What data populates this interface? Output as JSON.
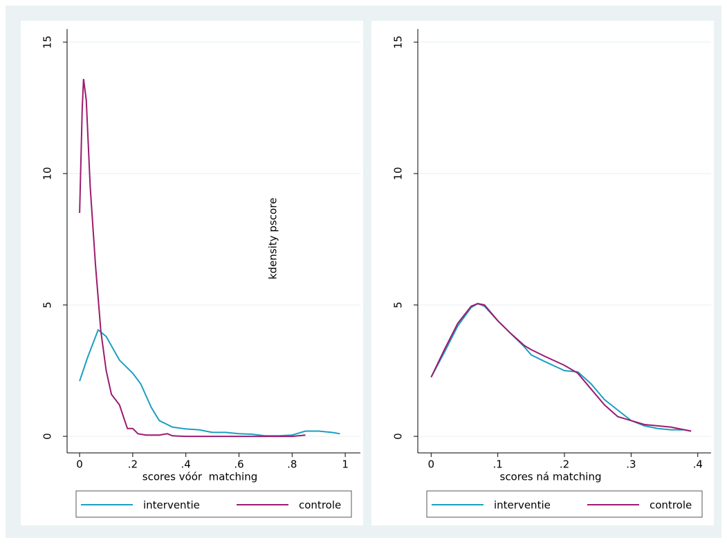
{
  "chart_data": [
    {
      "type": "line",
      "xlabel": "scores vóór  matching",
      "ylabel": "kdensity pscore",
      "xlim": [
        -0.047,
        1.057
      ],
      "ylim": [
        -0.63,
        15.5
      ],
      "xticks": [
        0,
        {
          "value": 0.2,
          "label": ".2"
        },
        {
          "value": 0.4,
          "label": ".4"
        },
        {
          "value": 0.6,
          "label": ".6"
        },
        {
          "value": 0.8,
          "label": ".8"
        },
        1
      ],
      "yticks": [
        0,
        5,
        10,
        15
      ],
      "grid": true,
      "series": [
        {
          "name": "interventie",
          "color": "#1a9fc0",
          "x": [
            0,
            0.03,
            0.07,
            0.1,
            0.15,
            0.2,
            0.23,
            0.27,
            0.3,
            0.35,
            0.4,
            0.45,
            0.5,
            0.55,
            0.6,
            0.65,
            0.7,
            0.75,
            0.8,
            0.85,
            0.9,
            0.95,
            0.98
          ],
          "values": [
            2.1,
            3.0,
            4.05,
            3.8,
            2.9,
            2.4,
            2.0,
            1.1,
            0.6,
            0.35,
            0.28,
            0.25,
            0.15,
            0.15,
            0.1,
            0.08,
            0.02,
            0.02,
            0.05,
            0.2,
            0.2,
            0.15,
            0.1
          ]
        },
        {
          "name": "controle",
          "color": "#9c1a6e",
          "x": [
            0,
            0.01,
            0.015,
            0.025,
            0.04,
            0.06,
            0.08,
            0.1,
            0.12,
            0.15,
            0.17,
            0.18,
            0.2,
            0.22,
            0.25,
            0.3,
            0.33,
            0.35,
            0.4,
            0.5,
            0.6,
            0.7,
            0.8,
            0.85
          ],
          "values": [
            8.5,
            12.5,
            13.6,
            12.8,
            9.5,
            6.5,
            4.0,
            2.5,
            1.6,
            1.2,
            0.6,
            0.3,
            0.3,
            0.1,
            0.05,
            0.05,
            0.1,
            0.02,
            0,
            0,
            0,
            0,
            0,
            0.05
          ]
        }
      ]
    },
    {
      "type": "line",
      "xlabel": "scores ná matching",
      "xlim": [
        -0.02,
        0.42
      ],
      "ylim": [
        -0.63,
        15.5
      ],
      "xticks": [
        0,
        {
          "value": 0.1,
          "label": ".1"
        },
        {
          "value": 0.2,
          "label": ".2"
        },
        {
          "value": 0.3,
          "label": ".3"
        },
        {
          "value": 0.4,
          "label": ".4"
        }
      ],
      "yticks": [
        0,
        5,
        10,
        15
      ],
      "grid": true,
      "series": [
        {
          "name": "interventie",
          "color": "#1a9fc0",
          "x": [
            0,
            0.02,
            0.04,
            0.06,
            0.07,
            0.08,
            0.1,
            0.12,
            0.14,
            0.15,
            0.17,
            0.2,
            0.22,
            0.24,
            0.26,
            0.28,
            0.3,
            0.32,
            0.34,
            0.36,
            0.38,
            0.39
          ],
          "values": [
            2.25,
            3.2,
            4.2,
            4.9,
            5.05,
            4.95,
            4.4,
            3.9,
            3.4,
            3.1,
            2.85,
            2.5,
            2.45,
            2.0,
            1.4,
            1.0,
            0.6,
            0.4,
            0.3,
            0.25,
            0.25,
            0.2
          ]
        },
        {
          "name": "controle",
          "color": "#9c1a6e",
          "x": [
            0,
            0.02,
            0.04,
            0.06,
            0.07,
            0.08,
            0.1,
            0.12,
            0.14,
            0.15,
            0.17,
            0.2,
            0.22,
            0.24,
            0.26,
            0.28,
            0.3,
            0.32,
            0.34,
            0.36,
            0.38,
            0.39
          ],
          "values": [
            2.25,
            3.3,
            4.3,
            4.95,
            5.05,
            5.0,
            4.4,
            3.9,
            3.45,
            3.3,
            3.05,
            2.7,
            2.4,
            1.8,
            1.2,
            0.75,
            0.6,
            0.45,
            0.4,
            0.35,
            0.25,
            0.2
          ]
        }
      ]
    }
  ]
}
